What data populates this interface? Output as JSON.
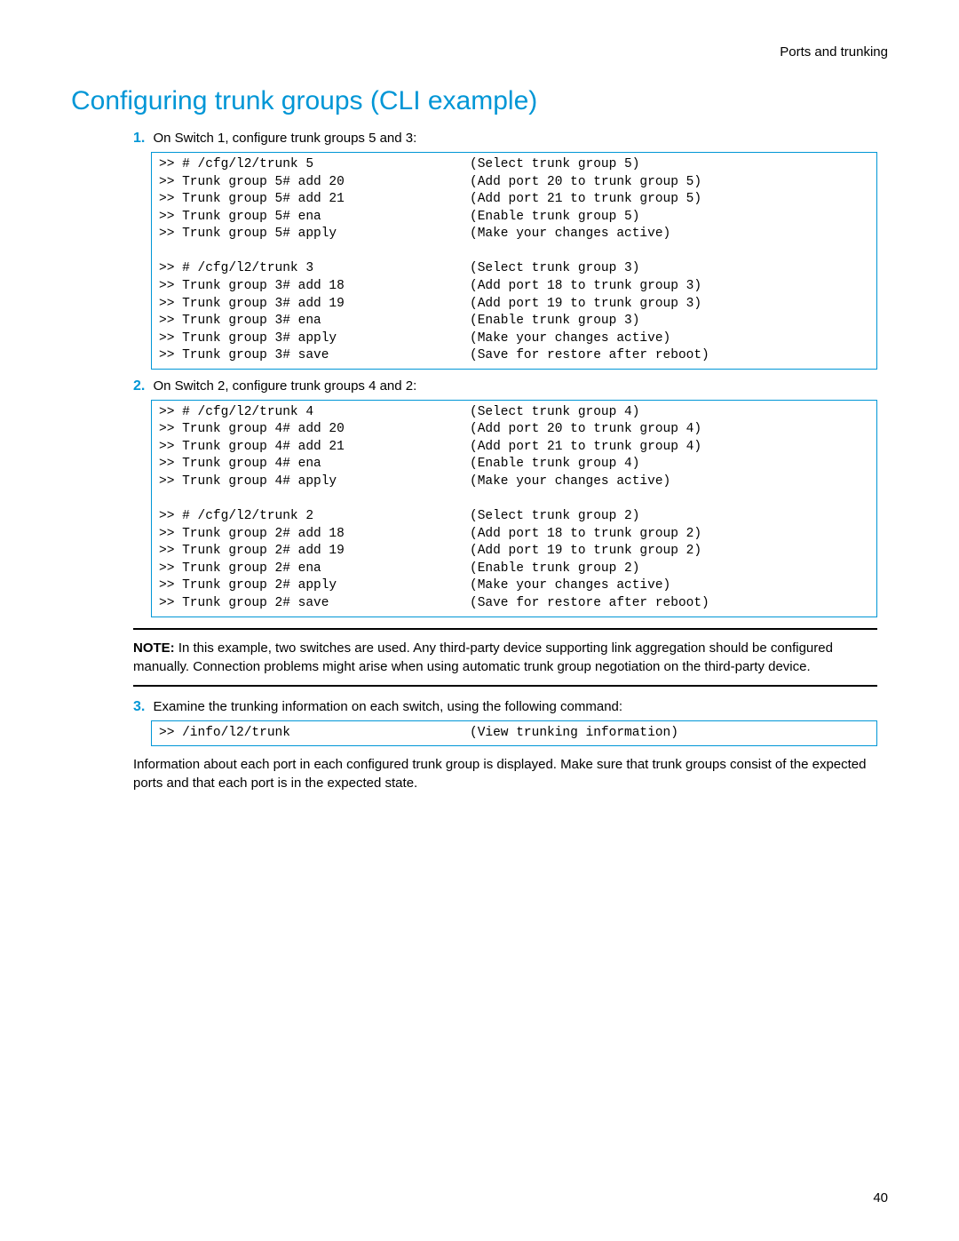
{
  "header": "Ports and trunking",
  "heading": "Configuring trunk groups (CLI example)",
  "steps": [
    {
      "num": "1.",
      "text": "On Switch 1, configure trunk groups 5 and 3:"
    },
    {
      "num": "2.",
      "text": "On Switch 2, configure trunk groups 4 and 2:"
    },
    {
      "num": "3.",
      "text": "Examine the trunking information on each switch, using the following command:"
    }
  ],
  "code1": [
    {
      "cmd": ">> # /cfg/l2/trunk 5",
      "desc": "(Select trunk group 5)"
    },
    {
      "cmd": ">> Trunk group 5# add 20",
      "desc": "(Add port 20 to trunk group 5)"
    },
    {
      "cmd": ">> Trunk group 5# add 21",
      "desc": "(Add port 21 to trunk group 5)"
    },
    {
      "cmd": ">> Trunk group 5# ena",
      "desc": "(Enable trunk group 5)"
    },
    {
      "cmd": ">> Trunk group 5# apply",
      "desc": "(Make your changes active)"
    },
    {
      "cmd": "",
      "desc": ""
    },
    {
      "cmd": ">> # /cfg/l2/trunk 3",
      "desc": "(Select trunk group 3)"
    },
    {
      "cmd": ">> Trunk group 3# add 18",
      "desc": "(Add port 18 to trunk group 3)"
    },
    {
      "cmd": ">> Trunk group 3# add 19",
      "desc": "(Add port 19 to trunk group 3)"
    },
    {
      "cmd": ">> Trunk group 3# ena",
      "desc": "(Enable trunk group 3)"
    },
    {
      "cmd": ">> Trunk group 3# apply",
      "desc": "(Make your changes active)"
    },
    {
      "cmd": ">> Trunk group 3# save",
      "desc": "(Save for restore after reboot)"
    }
  ],
  "code2": [
    {
      "cmd": ">> # /cfg/l2/trunk 4",
      "desc": "(Select trunk group 4)"
    },
    {
      "cmd": ">> Trunk group 4# add 20",
      "desc": "(Add port 20 to trunk group 4)"
    },
    {
      "cmd": ">> Trunk group 4# add 21",
      "desc": "(Add port 21 to trunk group 4)"
    },
    {
      "cmd": ">> Trunk group 4# ena",
      "desc": "(Enable trunk group 4)"
    },
    {
      "cmd": ">> Trunk group 4# apply",
      "desc": "(Make your changes active)"
    },
    {
      "cmd": "",
      "desc": ""
    },
    {
      "cmd": ">> # /cfg/l2/trunk 2",
      "desc": "(Select trunk group 2)"
    },
    {
      "cmd": ">> Trunk group 2# add 18",
      "desc": "(Add port 18 to trunk group 2)"
    },
    {
      "cmd": ">> Trunk group 2# add 19",
      "desc": "(Add port 19 to trunk group 2)"
    },
    {
      "cmd": ">> Trunk group 2# ena",
      "desc": "(Enable trunk group 2)"
    },
    {
      "cmd": ">> Trunk group 2# apply",
      "desc": "(Make your changes active)"
    },
    {
      "cmd": ">> Trunk group 2# save",
      "desc": "(Save for restore after reboot)"
    }
  ],
  "note": {
    "label": "NOTE:",
    "text": " In this example, two switches are used. Any third-party device supporting link aggregation should be configured manually. Connection problems might arise when using automatic trunk group negotiation on the third-party device."
  },
  "code3": [
    {
      "cmd": ">> /info/l2/trunk",
      "desc": "(View trunking information)"
    }
  ],
  "body_after": "Information about each port in each configured trunk group is displayed. Make sure that trunk groups consist of the expected ports and that each port is in the expected state.",
  "page_number": "40"
}
